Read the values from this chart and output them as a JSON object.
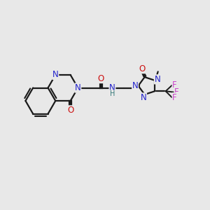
{
  "bg_color": "#e8e8e8",
  "bond_color": "#1a1a1a",
  "N_color": "#2222cc",
  "O_color": "#cc1111",
  "F_color": "#cc44cc",
  "H_color": "#337777",
  "figsize": [
    3.0,
    3.0
  ],
  "dpi": 100,
  "xlim": [
    0,
    10
  ],
  "ylim": [
    0,
    10
  ]
}
